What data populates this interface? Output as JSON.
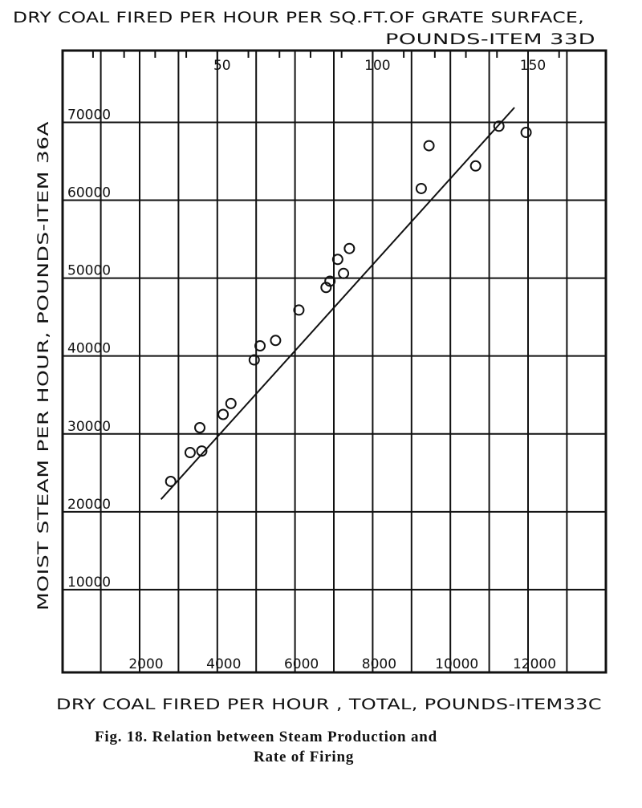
{
  "chart_data": {
    "type": "scatter",
    "title": "DRY COAL FIRED PER HOUR PER SQ.FT.OF GRATE SURFACE,",
    "top_axis_label": "POUNDS-ITEM 33D",
    "top_axis_ticks": [
      "50",
      "100",
      "150"
    ],
    "top_axis_tick_values": [
      50,
      100,
      150
    ],
    "top_axis_lb_per_hour_per_unit": 80,
    "xlabel": "DRY COAL FIRED PER HOUR , TOTAL, POUNDS-ITEM33C",
    "ylabel": "MOIST STEAM PER HOUR, POUNDS-ITEM 36A",
    "x_ticks": [
      "2000",
      "4000",
      "6000",
      "8000",
      "10000",
      "12000"
    ],
    "x_tick_values": [
      2000,
      4000,
      6000,
      8000,
      10000,
      12000
    ],
    "y_ticks": [
      "10000",
      "20000",
      "30000",
      "40000",
      "50000",
      "60000",
      "70000"
    ],
    "y_tick_values": [
      10000,
      20000,
      30000,
      40000,
      50000,
      60000,
      70000
    ],
    "xlim": [
      0,
      14000
    ],
    "ylim": [
      0,
      80000
    ],
    "grid": true,
    "points": [
      {
        "x": 2800,
        "y": 23900
      },
      {
        "x": 3300,
        "y": 27600
      },
      {
        "x": 3600,
        "y": 27800
      },
      {
        "x": 3550,
        "y": 30800
      },
      {
        "x": 4150,
        "y": 32500
      },
      {
        "x": 4350,
        "y": 33900
      },
      {
        "x": 4950,
        "y": 39500
      },
      {
        "x": 5100,
        "y": 41300
      },
      {
        "x": 5500,
        "y": 42000
      },
      {
        "x": 6100,
        "y": 45900
      },
      {
        "x": 6800,
        "y": 48800
      },
      {
        "x": 6900,
        "y": 49600
      },
      {
        "x": 7100,
        "y": 52400
      },
      {
        "x": 7250,
        "y": 50600
      },
      {
        "x": 7400,
        "y": 53800
      },
      {
        "x": 9250,
        "y": 61500
      },
      {
        "x": 9450,
        "y": 67000
      },
      {
        "x": 10650,
        "y": 64400
      },
      {
        "x": 11250,
        "y": 69500
      },
      {
        "x": 11950,
        "y": 68700
      }
    ],
    "fit_line": {
      "x": [
        2550,
        11650
      ],
      "y": [
        21600,
        71900
      ]
    }
  },
  "caption": {
    "line1": "Fig. 18.  Relation between Steam Production and",
    "line2": "Rate of Firing"
  }
}
